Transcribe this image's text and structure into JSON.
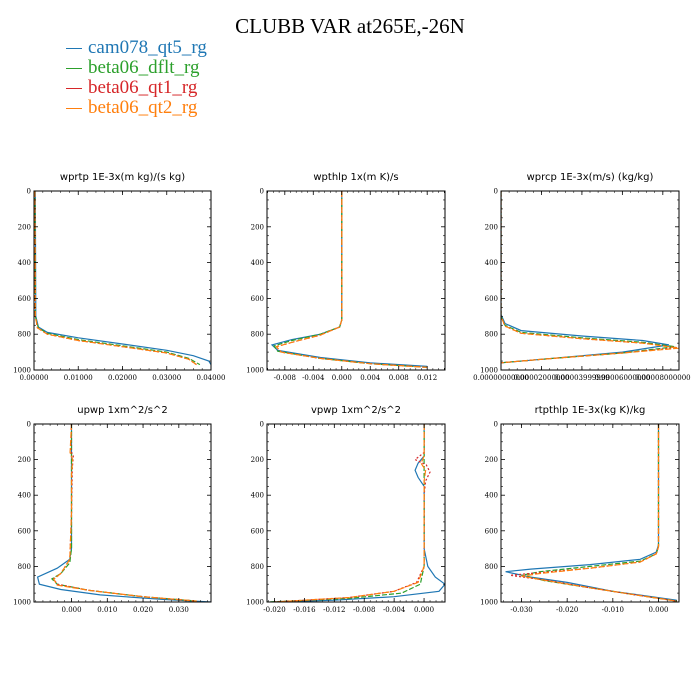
{
  "title": "CLUBB VAR at265E,-26N",
  "colors": {
    "cam078_qt5_rg": "#1f77b4",
    "beta06_dflt_rg": "#2ca02c",
    "beta06_qt1_rg": "#d62728",
    "beta06_qt2_rg": "#ff7f0e"
  },
  "chart_data": [
    {
      "type": "line",
      "title": "wprtp  1E-3x(m kg)/(s kg)",
      "xlim": [
        0,
        0.04
      ],
      "ylim": [
        1000,
        0
      ],
      "xticks": [
        "0.00000",
        "0.01000",
        "0.02000",
        "0.03000",
        "0.04000"
      ],
      "yticks": [
        "0",
        "200",
        "400",
        "600",
        "800",
        "1000"
      ],
      "series": [
        {
          "name": "cam078_qt5_rg",
          "x": [
            0.0003,
            0.0004,
            0.001,
            0.003,
            0.01,
            0.02,
            0.03,
            0.036,
            0.0395,
            0.04
          ],
          "y": [
            0,
            700,
            760,
            790,
            820,
            855,
            890,
            920,
            950,
            970
          ]
        },
        {
          "name": "beta06_dflt_rg",
          "x": [
            0.0002,
            0.0003,
            0.001,
            0.003,
            0.01,
            0.02,
            0.03,
            0.035,
            0.0375
          ],
          "y": [
            0,
            700,
            765,
            795,
            830,
            865,
            900,
            935,
            970
          ]
        },
        {
          "name": "beta06_qt1_rg",
          "x": [
            0.0002,
            0.0003,
            0.0008,
            0.003,
            0.01,
            0.02,
            0.03,
            0.035,
            0.037
          ],
          "y": [
            0,
            700,
            765,
            800,
            835,
            870,
            905,
            940,
            975
          ]
        },
        {
          "name": "beta06_qt2_rg",
          "x": [
            0.0002,
            0.0003,
            0.0008,
            0.003,
            0.01,
            0.02,
            0.03,
            0.035,
            0.037
          ],
          "y": [
            0,
            700,
            765,
            800,
            835,
            870,
            905,
            940,
            975
          ]
        }
      ]
    },
    {
      "type": "line",
      "title": "wpthlp  1x(m K)/s",
      "xlim": [
        -0.0105,
        0.0145
      ],
      "ylim": [
        1000,
        0
      ],
      "xticks": [
        "-0.008",
        "-0.004",
        "0.000",
        "0.004",
        "0.008",
        "0.012"
      ],
      "xtickvals": [
        -0.008,
        -0.004,
        0,
        0.004,
        0.008,
        0.012
      ],
      "yticks": [
        "0",
        "200",
        "400",
        "600",
        "800",
        "1000"
      ],
      "series": [
        {
          "name": "cam078_qt5_rg",
          "x": [
            0,
            0,
            -0.0003,
            -0.003,
            -0.007,
            -0.0098,
            -0.009,
            -0.003,
            0.004,
            0.012
          ],
          "y": [
            0,
            720,
            760,
            800,
            830,
            860,
            890,
            930,
            960,
            980
          ]
        },
        {
          "name": "beta06_dflt_rg",
          "x": [
            0,
            0,
            -0.0003,
            -0.003,
            -0.007,
            -0.0095,
            -0.009,
            -0.003,
            0.004,
            0.012
          ],
          "y": [
            0,
            720,
            760,
            800,
            835,
            865,
            895,
            935,
            965,
            985
          ]
        },
        {
          "name": "beta06_qt1_rg",
          "x": [
            0,
            0,
            -0.0003,
            -0.003,
            -0.0065,
            -0.0092,
            -0.0085,
            -0.003,
            0.004,
            0.012
          ],
          "y": [
            0,
            720,
            760,
            805,
            840,
            870,
            900,
            935,
            965,
            985
          ]
        },
        {
          "name": "beta06_qt2_rg",
          "x": [
            0,
            0,
            -0.0003,
            -0.003,
            -0.0065,
            -0.0092,
            -0.0085,
            -0.003,
            0.004,
            0.012
          ],
          "y": [
            0,
            720,
            760,
            805,
            840,
            870,
            900,
            935,
            965,
            985
          ]
        }
      ]
    },
    {
      "type": "line",
      "title": "wprcp  1E-3x(m/s) (kg/kg)",
      "xlim": [
        0,
        8.8e-05
      ],
      "ylim": [
        1000,
        0
      ],
      "xticks": [
        "0.00000000000",
        "0.00002000000",
        "0.00003999999",
        "0.00006000000",
        "0.00008000000"
      ],
      "xtickvals": [
        0,
        2e-05,
        4e-05,
        6e-05,
        8e-05
      ],
      "yticks": [
        "0",
        "200",
        "400",
        "600",
        "800",
        "1000"
      ],
      "series": [
        {
          "name": "cam078_qt5_rg",
          "x": [
            0,
            0,
            2e-06,
            1e-05,
            4e-05,
            7e-05,
            8.3e-05,
            6e-05,
            2e-05,
            0
          ],
          "y": [
            0,
            690,
            740,
            780,
            810,
            835,
            860,
            900,
            940,
            960
          ]
        },
        {
          "name": "beta06_dflt_rg",
          "x": [
            0,
            0,
            2e-06,
            1e-05,
            4e-05,
            7e-05,
            8.6e-05,
            6e-05,
            2e-05,
            0
          ],
          "y": [
            0,
            700,
            750,
            790,
            820,
            845,
            870,
            905,
            940,
            960
          ]
        },
        {
          "name": "beta06_qt1_rg",
          "x": [
            0,
            0,
            2e-06,
            1e-05,
            4e-05,
            7e-05,
            8.7e-05,
            6e-05,
            2e-05,
            0
          ],
          "y": [
            0,
            700,
            755,
            795,
            825,
            850,
            875,
            905,
            940,
            960
          ]
        },
        {
          "name": "beta06_qt2_rg",
          "x": [
            0,
            0,
            2e-06,
            1e-05,
            4e-05,
            7e-05,
            8.8e-05,
            6e-05,
            2e-05,
            0
          ],
          "y": [
            0,
            700,
            755,
            795,
            825,
            850,
            878,
            905,
            940,
            960
          ]
        }
      ]
    },
    {
      "type": "line",
      "title": "upwp  1xm^2/s^2",
      "xlim": [
        -0.0105,
        0.039
      ],
      "ylim": [
        1000,
        0
      ],
      "xticks": [
        "0.000",
        "0.010",
        "0.020",
        "0.030"
      ],
      "xtickvals": [
        0,
        0.01,
        0.02,
        0.03
      ],
      "yticks": [
        "0",
        "200",
        "400",
        "600",
        "800",
        "1000"
      ],
      "series": [
        {
          "name": "cam078_qt5_rg",
          "x": [
            0,
            0,
            -0.0005,
            -0.004,
            -0.0095,
            -0.009,
            -0.003,
            0.008,
            0.025,
            0.039
          ],
          "y": [
            0,
            700,
            760,
            810,
            860,
            900,
            930,
            960,
            985,
            1000
          ]
        },
        {
          "name": "beta06_dflt_rg",
          "x": [
            0,
            0,
            -0.0005,
            -0.003,
            -0.0055,
            -0.004,
            0.005,
            0.02,
            0.035
          ],
          "y": [
            0,
            700,
            780,
            840,
            870,
            900,
            935,
            970,
            995
          ]
        },
        {
          "name": "beta06_qt1_rg",
          "x": [
            0,
            -0.0002,
            0.0005,
            0.0002,
            0,
            -0.0005,
            -0.003,
            -0.005,
            -0.004,
            0.005,
            0.02,
            0.035
          ],
          "y": [
            0,
            150,
            180,
            250,
            500,
            760,
            840,
            870,
            900,
            935,
            970,
            995
          ]
        },
        {
          "name": "beta06_qt2_rg",
          "x": [
            0,
            -0.0004,
            0.0003,
            0,
            0,
            -0.0005,
            -0.003,
            -0.005,
            -0.004,
            0.005,
            0.02,
            0.035
          ],
          "y": [
            0,
            160,
            200,
            280,
            500,
            760,
            840,
            872,
            905,
            935,
            970,
            995
          ]
        }
      ]
    },
    {
      "type": "line",
      "title": "vpwp  1xm^2/s^2",
      "xlim": [
        -0.021,
        0.0028
      ],
      "ylim": [
        1000,
        0
      ],
      "xticks": [
        "-0.020",
        "-0.016",
        "-0.012",
        "-0.008",
        "-0.004",
        "0.000"
      ],
      "xtickvals": [
        -0.02,
        -0.016,
        -0.012,
        -0.008,
        -0.004,
        0
      ],
      "yticks": [
        "0",
        "200",
        "400",
        "600",
        "800",
        "1000"
      ],
      "series": [
        {
          "name": "cam078_qt5_rg",
          "x": [
            0,
            0,
            -0.0008,
            -0.0012,
            -0.0008,
            0,
            0,
            0.0005,
            0.0015,
            0.0028,
            0.002,
            -0.004,
            -0.012,
            -0.02
          ],
          "y": [
            0,
            180,
            220,
            260,
            300,
            350,
            700,
            800,
            860,
            900,
            940,
            970,
            990,
            1000
          ]
        },
        {
          "name": "beta06_dflt_rg",
          "x": [
            0,
            0,
            0,
            -0.0005,
            -0.003,
            -0.01,
            -0.021
          ],
          "y": [
            0,
            400,
            800,
            900,
            950,
            980,
            1000
          ]
        },
        {
          "name": "beta06_qt1_rg",
          "x": [
            0,
            0,
            -0.0012,
            0.0003,
            0.0008,
            0.0002,
            0,
            0,
            -0.001,
            -0.004,
            -0.01,
            -0.02
          ],
          "y": [
            0,
            160,
            200,
            230,
            270,
            320,
            400,
            800,
            890,
            940,
            975,
            1000
          ]
        },
        {
          "name": "beta06_qt2_rg",
          "x": [
            0,
            0,
            -0.0004,
            0.0002,
            0,
            0,
            -0.0008,
            -0.004,
            -0.01,
            -0.02
          ],
          "y": [
            0,
            180,
            220,
            260,
            320,
            800,
            890,
            940,
            975,
            1000
          ]
        }
      ]
    },
    {
      "type": "line",
      "title": "rtpthlp  1E-3x(kg K)/kg",
      "xlim": [
        -0.0345,
        0.0045
      ],
      "ylim": [
        1000,
        0
      ],
      "xticks": [
        "-0.030",
        "-0.020",
        "-0.010",
        "0.000"
      ],
      "xtickvals": [
        -0.03,
        -0.02,
        -0.01,
        0
      ],
      "yticks": [
        "0",
        "200",
        "400",
        "600",
        "800",
        "1000"
      ],
      "series": [
        {
          "name": "cam078_qt5_rg",
          "x": [
            0,
            0,
            -0.0005,
            -0.004,
            -0.015,
            -0.028,
            -0.0335,
            -0.028,
            -0.02,
            -0.01,
            0.004
          ],
          "y": [
            0,
            680,
            720,
            760,
            790,
            815,
            830,
            860,
            890,
            940,
            990
          ]
        },
        {
          "name": "beta06_dflt_rg",
          "x": [
            0,
            0,
            -0.0005,
            -0.004,
            -0.015,
            -0.026,
            -0.03,
            -0.025,
            -0.015,
            -0.005,
            0.004
          ],
          "y": [
            0,
            690,
            730,
            770,
            800,
            830,
            850,
            880,
            920,
            960,
            995
          ]
        },
        {
          "name": "beta06_qt1_rg",
          "x": [
            0,
            0,
            -0.0005,
            -0.004,
            -0.015,
            -0.026,
            -0.0325,
            -0.024,
            -0.015,
            -0.005,
            0.004
          ],
          "y": [
            0,
            690,
            730,
            775,
            810,
            835,
            850,
            880,
            920,
            960,
            995
          ]
        },
        {
          "name": "beta06_qt2_rg",
          "x": [
            0,
            0,
            -0.0005,
            -0.004,
            -0.015,
            -0.026,
            -0.03,
            -0.024,
            -0.015,
            -0.005,
            0.004
          ],
          "y": [
            0,
            690,
            730,
            775,
            810,
            840,
            855,
            882,
            920,
            960,
            995
          ]
        }
      ]
    }
  ]
}
